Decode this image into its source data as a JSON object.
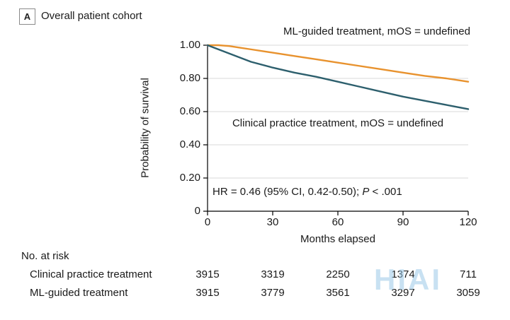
{
  "panel": {
    "label": "A",
    "title": "Overall patient cohort"
  },
  "chart_data": {
    "type": "line",
    "subtype": "kaplan-meier-survival",
    "title": "Overall patient cohort",
    "xlabel": "Months elapsed",
    "ylabel": "Probability of survival",
    "xlim": [
      0,
      120
    ],
    "ylim": [
      0,
      1
    ],
    "grid": "horizontal",
    "legend_position": "inline-annotations",
    "xticks": [
      {
        "value": 0,
        "label": "0"
      },
      {
        "value": 30,
        "label": "30"
      },
      {
        "value": 60,
        "label": "60"
      },
      {
        "value": 90,
        "label": "90"
      },
      {
        "value": 120,
        "label": "120"
      }
    ],
    "yticks": [
      {
        "value": 0,
        "label": "0"
      },
      {
        "value": 0.2,
        "label": "0.20"
      },
      {
        "value": 0.4,
        "label": "0.40"
      },
      {
        "value": 0.6,
        "label": "0.60"
      },
      {
        "value": 0.8,
        "label": "0.80"
      },
      {
        "value": 1.0,
        "label": "1.00"
      }
    ],
    "series": [
      {
        "name": "ML-guided treatment",
        "label": "ML-guided treatment, mOS = undefined",
        "color": "#E8922E",
        "x": [
          0,
          5,
          10,
          15,
          20,
          30,
          40,
          50,
          60,
          70,
          80,
          90,
          100,
          110,
          115,
          120
        ],
        "y": [
          1.0,
          1.0,
          0.995,
          0.985,
          0.975,
          0.955,
          0.935,
          0.915,
          0.895,
          0.875,
          0.855,
          0.835,
          0.815,
          0.8,
          0.79,
          0.78
        ]
      },
      {
        "name": "Clinical practice treatment",
        "label": "Clinical practice treatment, mOS = undefined",
        "color": "#2D5F6D",
        "x": [
          0,
          5,
          10,
          15,
          20,
          30,
          40,
          50,
          60,
          70,
          80,
          90,
          100,
          110,
          120
        ],
        "y": [
          1.0,
          0.975,
          0.95,
          0.925,
          0.9,
          0.865,
          0.835,
          0.81,
          0.78,
          0.75,
          0.72,
          0.69,
          0.665,
          0.64,
          0.615
        ]
      }
    ],
    "annotation": {
      "hr_prefix": "HR = 0.46 (95% CI, 0.42-0.50); ",
      "p_symbol": "P",
      "p_suffix": " < .001"
    },
    "colors": {
      "grid": "#DADADA",
      "axis": "#000000"
    }
  },
  "risk_table": {
    "title": "No. at risk",
    "rows": [
      {
        "label": "Clinical practice treatment",
        "values": [
          "3915",
          "3319",
          "2250",
          "1374",
          "711"
        ]
      },
      {
        "label": "ML-guided treatment",
        "values": [
          "3915",
          "3779",
          "3561",
          "3297",
          "3059"
        ]
      }
    ]
  },
  "watermark": "HIAI"
}
